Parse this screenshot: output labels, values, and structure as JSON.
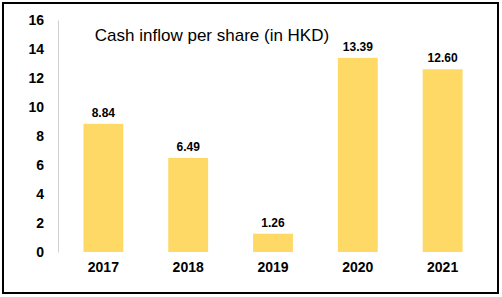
{
  "chart_data": {
    "type": "bar",
    "title": "Cash inflow per share (in HKD)",
    "categories": [
      "2017",
      "2018",
      "2019",
      "2020",
      "2021"
    ],
    "values": [
      8.84,
      6.49,
      1.26,
      13.39,
      12.6
    ],
    "value_labels": [
      "8.84",
      "6.49",
      "1.26",
      "13.39",
      "12.60"
    ],
    "color": "#ffd966",
    "ylim": [
      0,
      16
    ],
    "yticks": [
      0,
      2,
      4,
      6,
      8,
      10,
      12,
      14,
      16
    ],
    "grid": false,
    "data_labels": true
  }
}
